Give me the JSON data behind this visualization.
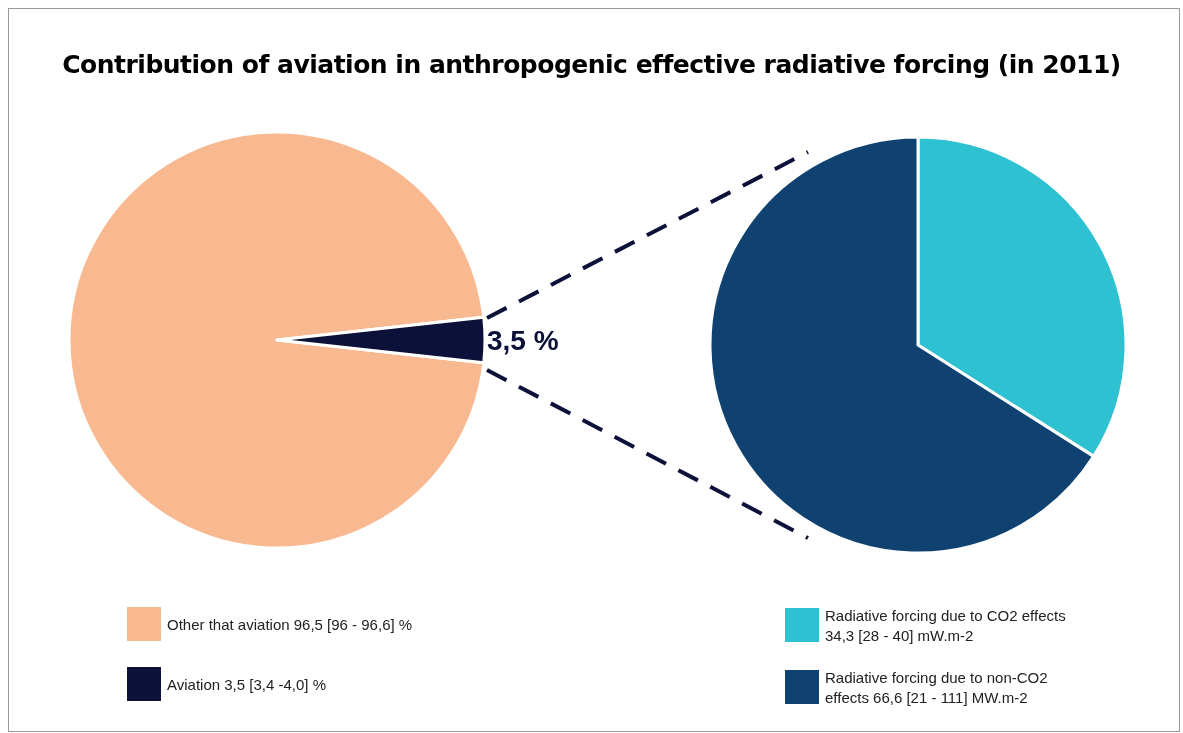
{
  "chart_data": [
    {
      "type": "pie",
      "title": "Contribution of aviation in anthropogenic effective radiative forcing (in 2011)",
      "categories": [
        "Other that aviation 96,5 [96 - 96,6] %",
        "Aviation 3,5 [3,4 -4,0] %"
      ],
      "values": [
        96.5,
        3.5
      ],
      "colors": [
        "#f9b990",
        "#0b1138"
      ],
      "value_labels": [
        null,
        "3,5 %"
      ],
      "legend": "bottom"
    },
    {
      "type": "pie",
      "categories": [
        "Radiative forcing due to CO2 effects 34,3 [28 - 40] mW.m-2",
        "Radiative forcing due to non-CO2 effects 66,6 [21 - 111] MW.m-2"
      ],
      "values": [
        34.3,
        66.6
      ],
      "colors": [
        "#2ec1d2",
        "#0f4271"
      ],
      "legend": "bottom"
    }
  ]
}
